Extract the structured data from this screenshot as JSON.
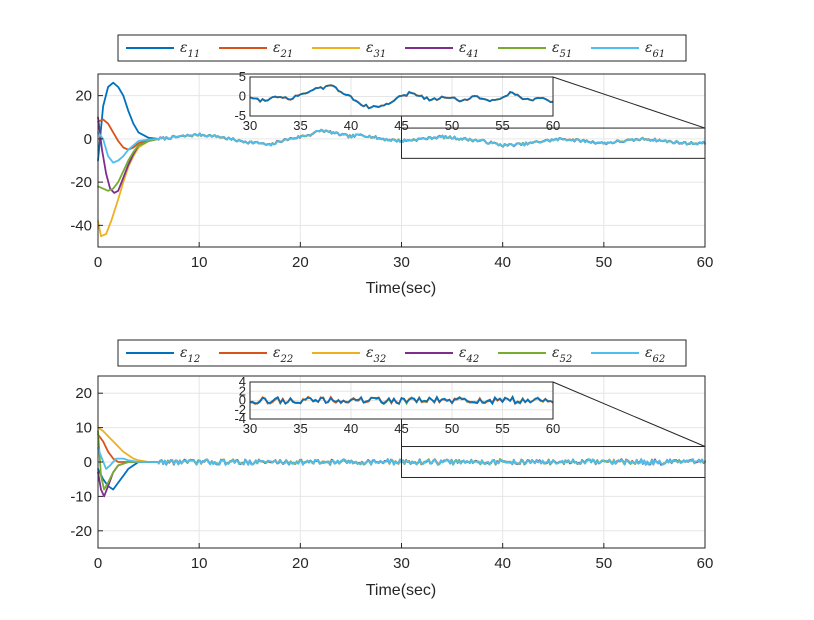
{
  "chart_data": [
    {
      "type": "line",
      "title": "",
      "xlabel": "Time(sec)",
      "ylabel": "",
      "xlim": [
        0,
        60
      ],
      "ylim": [
        -50,
        30
      ],
      "xticks": [
        0,
        10,
        20,
        30,
        40,
        50,
        60
      ],
      "yticks": [
        20,
        0,
        -20,
        -40
      ],
      "grid": true,
      "legend": {
        "placement": "top",
        "symbol": "ε"
      },
      "series": [
        {
          "name": "ε11",
          "sub": "11",
          "color": "#0072BD",
          "points": [
            [
              0,
              -10
            ],
            [
              0.5,
              15
            ],
            [
              1,
              24
            ],
            [
              1.5,
              26
            ],
            [
              2,
              24
            ],
            [
              2.5,
              20
            ],
            [
              3,
              13
            ],
            [
              3.5,
              7
            ],
            [
              4,
              3
            ],
            [
              5,
              0.5
            ],
            [
              6,
              0
            ]
          ]
        },
        {
          "name": "ε21",
          "sub": "21",
          "color": "#D95319",
          "points": [
            [
              0,
              8
            ],
            [
              0.5,
              9
            ],
            [
              1,
              7
            ],
            [
              1.5,
              3
            ],
            [
              2,
              -1
            ],
            [
              2.5,
              -4
            ],
            [
              3,
              -5
            ],
            [
              3.5,
              -4
            ],
            [
              4,
              -2
            ],
            [
              5,
              -0.5
            ],
            [
              6,
              0
            ]
          ]
        },
        {
          "name": "ε31",
          "sub": "31",
          "color": "#EDB120",
          "points": [
            [
              0,
              -38
            ],
            [
              0.3,
              -45
            ],
            [
              0.8,
              -44
            ],
            [
              1.3,
              -38
            ],
            [
              2,
              -28
            ],
            [
              2.5,
              -20
            ],
            [
              3,
              -13
            ],
            [
              3.5,
              -8
            ],
            [
              4,
              -4
            ],
            [
              5,
              -1
            ],
            [
              6,
              0
            ]
          ]
        },
        {
          "name": "ε41",
          "sub": "41",
          "color": "#7E2F8E",
          "points": [
            [
              0,
              10
            ],
            [
              0.4,
              -5
            ],
            [
              0.8,
              -16
            ],
            [
              1.2,
              -23
            ],
            [
              1.6,
              -25
            ],
            [
              2,
              -24
            ],
            [
              2.5,
              -18
            ],
            [
              3,
              -12
            ],
            [
              3.5,
              -7
            ],
            [
              4,
              -3
            ],
            [
              5,
              -1
            ],
            [
              6,
              0
            ]
          ]
        },
        {
          "name": "ε51",
          "sub": "51",
          "color": "#77AC30",
          "points": [
            [
              0,
              -22
            ],
            [
              0.5,
              -23
            ],
            [
              1,
              -24
            ],
            [
              1.5,
              -23
            ],
            [
              2,
              -20
            ],
            [
              2.5,
              -15
            ],
            [
              3,
              -10
            ],
            [
              3.5,
              -6
            ],
            [
              4,
              -3
            ],
            [
              5,
              -1
            ],
            [
              6,
              0
            ]
          ]
        },
        {
          "name": "ε61",
          "sub": "61",
          "color": "#4DBEEE",
          "points": [
            [
              0,
              3
            ],
            [
              0.5,
              0
            ],
            [
              1,
              -8
            ],
            [
              1.5,
              -11
            ],
            [
              2,
              -10
            ],
            [
              2.5,
              -8
            ],
            [
              3,
              -5
            ],
            [
              3.5,
              -3
            ],
            [
              4,
              -1
            ],
            [
              5,
              -0.3
            ],
            [
              6,
              0
            ]
          ]
        }
      ],
      "common_track": {
        "description": "all signals converge to a shared noisy trajectory after ~6 s",
        "keypoints": [
          [
            6,
            0
          ],
          [
            10,
            2
          ],
          [
            12,
            1
          ],
          [
            14,
            -1
          ],
          [
            16,
            -2
          ],
          [
            17,
            -3
          ],
          [
            18,
            -1
          ],
          [
            20,
            1
          ],
          [
            21,
            2
          ],
          [
            22,
            4
          ],
          [
            23,
            3
          ],
          [
            25,
            1
          ],
          [
            26,
            2
          ],
          [
            28,
            0
          ],
          [
            30,
            -1
          ],
          [
            32,
            0
          ],
          [
            34,
            1
          ],
          [
            36,
            0
          ],
          [
            38,
            -1
          ],
          [
            40,
            -3
          ],
          [
            42,
            -2.5
          ],
          [
            44,
            -1
          ],
          [
            46,
            0
          ],
          [
            48,
            -1
          ],
          [
            50,
            -2
          ],
          [
            52,
            -1
          ],
          [
            54,
            0
          ],
          [
            56,
            -1
          ],
          [
            58,
            -2
          ],
          [
            60,
            -2
          ]
        ],
        "noise": 0.6
      },
      "inset": {
        "xlim": [
          30,
          60
        ],
        "ylim": [
          -5,
          5
        ],
        "xticks": [
          30,
          35,
          40,
          45,
          50,
          55,
          60
        ],
        "yticks": [
          5,
          0,
          -5
        ],
        "zoom_window": {
          "x": [
            30,
            60
          ],
          "y": [
            -9,
            5
          ]
        },
        "keypoints": [
          [
            30,
            0
          ],
          [
            31,
            -1
          ],
          [
            32,
            -0.5
          ],
          [
            33,
            0
          ],
          [
            34,
            -0.5
          ],
          [
            35,
            0.5
          ],
          [
            36,
            1.5
          ],
          [
            37,
            2
          ],
          [
            38,
            3
          ],
          [
            39,
            1
          ],
          [
            40,
            0
          ],
          [
            41,
            -2
          ],
          [
            42,
            -3
          ],
          [
            43,
            -2.5
          ],
          [
            44,
            -1.5
          ],
          [
            45,
            0
          ],
          [
            46,
            1
          ],
          [
            47,
            0
          ],
          [
            48,
            -1
          ],
          [
            49,
            0
          ],
          [
            50,
            -0.5
          ],
          [
            51,
            -1
          ],
          [
            52,
            0
          ],
          [
            53,
            -0.5
          ],
          [
            54,
            -1
          ],
          [
            55,
            0
          ],
          [
            56,
            1
          ],
          [
            57,
            -0.5
          ],
          [
            58,
            -1
          ],
          [
            59,
            0
          ],
          [
            60,
            -1.5
          ]
        ],
        "noise": 0.4
      }
    },
    {
      "type": "line",
      "title": "",
      "xlabel": "Time(sec)",
      "ylabel": "",
      "xlim": [
        0,
        60
      ],
      "ylim": [
        -25,
        25
      ],
      "xticks": [
        0,
        10,
        20,
        30,
        40,
        50,
        60
      ],
      "yticks": [
        20,
        10,
        0,
        -10,
        -20
      ],
      "grid": true,
      "legend": {
        "placement": "top",
        "symbol": "ε"
      },
      "series": [
        {
          "name": "ε12",
          "sub": "12",
          "color": "#0072BD",
          "points": [
            [
              0,
              -2
            ],
            [
              0.5,
              -5
            ],
            [
              1,
              -7
            ],
            [
              1.5,
              -8
            ],
            [
              2,
              -6
            ],
            [
              2.5,
              -4
            ],
            [
              3,
              -2
            ],
            [
              3.5,
              -1
            ],
            [
              4,
              0
            ],
            [
              5,
              0
            ],
            [
              6,
              0
            ]
          ]
        },
        {
          "name": "ε22",
          "sub": "22",
          "color": "#D95319",
          "points": [
            [
              0,
              8
            ],
            [
              0.5,
              6
            ],
            [
              1,
              3
            ],
            [
              1.5,
              1
            ],
            [
              2,
              0
            ],
            [
              3,
              0
            ],
            [
              4,
              0
            ],
            [
              5,
              0
            ],
            [
              6,
              0
            ]
          ]
        },
        {
          "name": "ε32",
          "sub": "32",
          "color": "#EDB120",
          "points": [
            [
              0,
              10
            ],
            [
              0.5,
              9
            ],
            [
              1,
              7.5
            ],
            [
              1.5,
              6
            ],
            [
              2,
              4.5
            ],
            [
              2.5,
              3
            ],
            [
              3,
              2
            ],
            [
              3.5,
              1
            ],
            [
              4,
              0.5
            ],
            [
              5,
              0
            ],
            [
              6,
              0
            ]
          ]
        },
        {
          "name": "ε42",
          "sub": "42",
          "color": "#7E2F8E",
          "points": [
            [
              0,
              -3
            ],
            [
              0.3,
              -8
            ],
            [
              0.6,
              -10
            ],
            [
              1,
              -7
            ],
            [
              1.5,
              -3
            ],
            [
              2,
              -1
            ],
            [
              3,
              0
            ],
            [
              4,
              0
            ],
            [
              5,
              0
            ],
            [
              6,
              0
            ]
          ]
        },
        {
          "name": "ε52",
          "sub": "52",
          "color": "#77AC30",
          "points": [
            [
              0,
              9
            ],
            [
              0.3,
              -4
            ],
            [
              0.6,
              -8
            ],
            [
              1,
              -6
            ],
            [
              1.5,
              -3
            ],
            [
              2,
              -1
            ],
            [
              3,
              0
            ],
            [
              4,
              0
            ],
            [
              5,
              0
            ],
            [
              6,
              0
            ]
          ]
        },
        {
          "name": "ε62",
          "sub": "62",
          "color": "#4DBEEE",
          "points": [
            [
              0,
              4
            ],
            [
              0.4,
              1
            ],
            [
              0.8,
              -2
            ],
            [
              1.2,
              -1
            ],
            [
              1.8,
              1
            ],
            [
              2.5,
              1
            ],
            [
              3,
              0.5
            ],
            [
              4,
              0
            ],
            [
              5,
              0
            ],
            [
              6,
              0
            ]
          ]
        }
      ],
      "common_track": {
        "description": "all signals converge to a shared small-amplitude noisy trajectory",
        "keypoints": [
          [
            6,
            0
          ],
          [
            10,
            0
          ],
          [
            20,
            0
          ],
          [
            30,
            0
          ],
          [
            40,
            0
          ],
          [
            50,
            0
          ],
          [
            60,
            0
          ]
        ],
        "noise": 0.7
      },
      "inset": {
        "xlim": [
          30,
          60
        ],
        "ylim": [
          -4,
          4
        ],
        "xticks": [
          30,
          35,
          40,
          45,
          50,
          55,
          60
        ],
        "yticks": [
          4,
          2,
          0,
          -2,
          -4
        ],
        "zoom_window": {
          "x": [
            30,
            60
          ],
          "y": [
            -4.5,
            4.5
          ]
        },
        "keypoints": [
          [
            30,
            0
          ],
          [
            35,
            0
          ],
          [
            40,
            0
          ],
          [
            45,
            0
          ],
          [
            50,
            0
          ],
          [
            55,
            0
          ],
          [
            60,
            0
          ]
        ],
        "noise": 0.7
      }
    }
  ]
}
